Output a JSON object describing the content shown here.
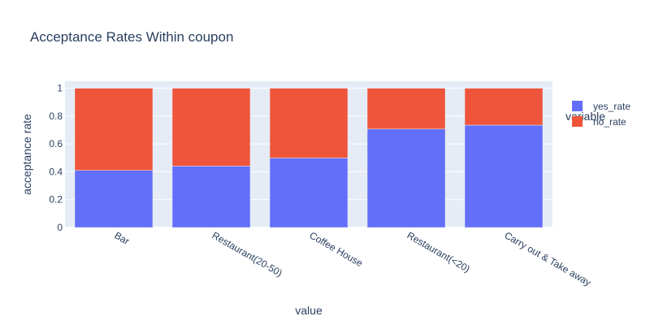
{
  "chart_data": {
    "type": "bar",
    "barmode": "stack",
    "title": "Acceptance Rates Within coupon",
    "xlabel": "value",
    "ylabel": "acceptance rate",
    "categories": [
      "Bar",
      "Restaurant(20-50)",
      "Coffee House",
      "Restaurant(<20)",
      "Carry out & Take away"
    ],
    "series": [
      {
        "name": "yes_rate",
        "color": "#636efa",
        "values": [
          0.41,
          0.441,
          0.499,
          0.707,
          0.735
        ]
      },
      {
        "name": "no_rate",
        "color": "#ef553b",
        "values": [
          0.59,
          0.559,
          0.501,
          0.293,
          0.265
        ]
      }
    ],
    "ylim": [
      0,
      1.05
    ],
    "yticks": [
      0,
      0.2,
      0.4,
      0.6,
      0.8,
      1
    ],
    "ytick_labels": [
      "0",
      "0.2",
      "0.4",
      "0.6",
      "0.8",
      "1"
    ],
    "grid": true,
    "legend": {
      "title": "variable",
      "position": "right"
    },
    "plot_bg": "#e5ecf6"
  }
}
